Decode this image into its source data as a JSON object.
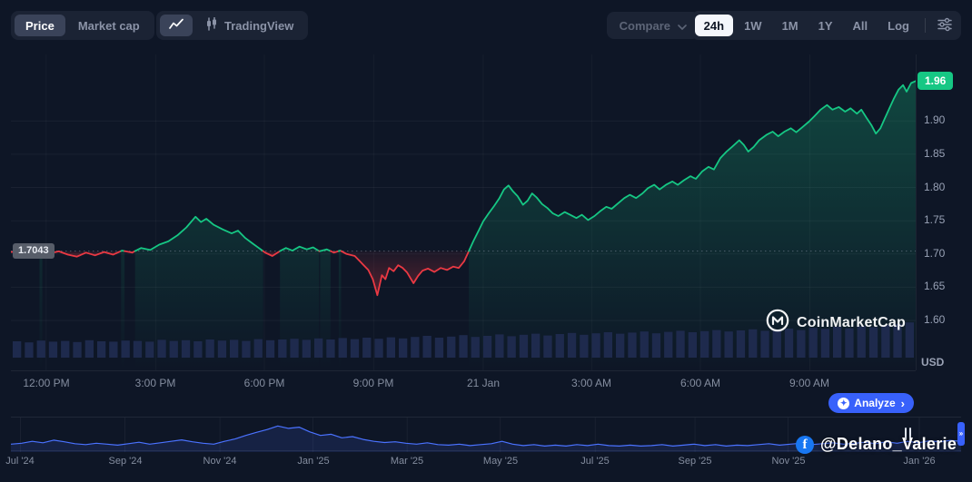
{
  "toolbar": {
    "price_label": "Price",
    "market_cap_label": "Market cap",
    "tradingview_label": "TradingView",
    "compare_label": "Compare",
    "ranges": [
      "24h",
      "1W",
      "1M",
      "1Y",
      "All",
      "Log"
    ],
    "active_range": "24h"
  },
  "icons": {
    "chevron_right": "›",
    "analyze_spark": "✦",
    "facebook_f": "f"
  },
  "analyze_button": {
    "label": "Analyze"
  },
  "watermarks": {
    "cmc": "CoinMarketCap",
    "photo": "@Delano_Valerie"
  },
  "chart_data": {
    "type": "line",
    "title": "24h price chart",
    "currency": "USD",
    "current_price": "1.96",
    "previous_close_label": "1.7043",
    "baseline_value": 1.7043,
    "ylim": [
      1.525,
      2.0
    ],
    "grid": true,
    "legend": "none",
    "y_ticks": [
      "1.90",
      "1.85",
      "1.80",
      "1.75",
      "1.70",
      "1.65",
      "1.60"
    ],
    "x_ticks": [
      {
        "label": "12:00 PM",
        "pos": 0.039
      },
      {
        "label": "3:00 PM",
        "pos": 0.16
      },
      {
        "label": "6:00 PM",
        "pos": 0.28
      },
      {
        "label": "9:00 PM",
        "pos": 0.401
      },
      {
        "label": "21 Jan",
        "pos": 0.522
      },
      {
        "label": "3:00 AM",
        "pos": 0.642
      },
      {
        "label": "6:00 AM",
        "pos": 0.762
      },
      {
        "label": "9:00 AM",
        "pos": 0.883
      }
    ],
    "colors": {
      "up": "#16C784",
      "down": "#EA3943",
      "volume": "#1E2A4D",
      "navigator": "#4A72FF",
      "accent": "#3861FB"
    },
    "series_points": [
      [
        0.0,
        1.703
      ],
      [
        0.013,
        1.704
      ],
      [
        0.023,
        1.7
      ],
      [
        0.033,
        1.705
      ],
      [
        0.043,
        1.701
      ],
      [
        0.053,
        1.704
      ],
      [
        0.063,
        1.699
      ],
      [
        0.073,
        1.696
      ],
      [
        0.083,
        1.702
      ],
      [
        0.093,
        1.698
      ],
      [
        0.103,
        1.703
      ],
      [
        0.113,
        1.699
      ],
      [
        0.123,
        1.705
      ],
      [
        0.134,
        1.702
      ],
      [
        0.144,
        1.709
      ],
      [
        0.154,
        1.706
      ],
      [
        0.164,
        1.714
      ],
      [
        0.174,
        1.719
      ],
      [
        0.184,
        1.728
      ],
      [
        0.194,
        1.74
      ],
      [
        0.204,
        1.756
      ],
      [
        0.21,
        1.748
      ],
      [
        0.216,
        1.753
      ],
      [
        0.224,
        1.744
      ],
      [
        0.234,
        1.737
      ],
      [
        0.244,
        1.731
      ],
      [
        0.251,
        1.735
      ],
      [
        0.259,
        1.724
      ],
      [
        0.267,
        1.716
      ],
      [
        0.274,
        1.709
      ],
      [
        0.281,
        1.702
      ],
      [
        0.289,
        1.697
      ],
      [
        0.297,
        1.704
      ],
      [
        0.304,
        1.709
      ],
      [
        0.311,
        1.705
      ],
      [
        0.319,
        1.711
      ],
      [
        0.327,
        1.707
      ],
      [
        0.334,
        1.71
      ],
      [
        0.341,
        1.704
      ],
      [
        0.349,
        1.707
      ],
      [
        0.357,
        1.702
      ],
      [
        0.364,
        1.705
      ],
      [
        0.371,
        1.7
      ],
      [
        0.38,
        1.697
      ],
      [
        0.385,
        1.69
      ],
      [
        0.39,
        1.683
      ],
      [
        0.395,
        1.676
      ],
      [
        0.4,
        1.662
      ],
      [
        0.405,
        1.638
      ],
      [
        0.41,
        1.668
      ],
      [
        0.414,
        1.662
      ],
      [
        0.418,
        1.679
      ],
      [
        0.423,
        1.674
      ],
      [
        0.428,
        1.683
      ],
      [
        0.433,
        1.679
      ],
      [
        0.438,
        1.672
      ],
      [
        0.445,
        1.656
      ],
      [
        0.45,
        1.667
      ],
      [
        0.455,
        1.675
      ],
      [
        0.461,
        1.678
      ],
      [
        0.468,
        1.673
      ],
      [
        0.475,
        1.679
      ],
      [
        0.482,
        1.676
      ],
      [
        0.489,
        1.681
      ],
      [
        0.495,
        1.679
      ],
      [
        0.501,
        1.689
      ],
      [
        0.506,
        1.704
      ],
      [
        0.511,
        1.719
      ],
      [
        0.517,
        1.735
      ],
      [
        0.522,
        1.749
      ],
      [
        0.528,
        1.761
      ],
      [
        0.534,
        1.772
      ],
      [
        0.54,
        1.784
      ],
      [
        0.545,
        1.797
      ],
      [
        0.55,
        1.803
      ],
      [
        0.555,
        1.794
      ],
      [
        0.56,
        1.787
      ],
      [
        0.566,
        1.774
      ],
      [
        0.571,
        1.78
      ],
      [
        0.576,
        1.791
      ],
      [
        0.581,
        1.785
      ],
      [
        0.587,
        1.775
      ],
      [
        0.593,
        1.769
      ],
      [
        0.599,
        1.761
      ],
      [
        0.605,
        1.757
      ],
      [
        0.612,
        1.763
      ],
      [
        0.618,
        1.759
      ],
      [
        0.625,
        1.754
      ],
      [
        0.631,
        1.759
      ],
      [
        0.638,
        1.751
      ],
      [
        0.645,
        1.757
      ],
      [
        0.651,
        1.764
      ],
      [
        0.658,
        1.771
      ],
      [
        0.664,
        1.768
      ],
      [
        0.671,
        1.776
      ],
      [
        0.678,
        1.784
      ],
      [
        0.684,
        1.789
      ],
      [
        0.691,
        1.784
      ],
      [
        0.698,
        1.791
      ],
      [
        0.704,
        1.799
      ],
      [
        0.711,
        1.804
      ],
      [
        0.717,
        1.797
      ],
      [
        0.724,
        1.804
      ],
      [
        0.731,
        1.809
      ],
      [
        0.737,
        1.804
      ],
      [
        0.744,
        1.811
      ],
      [
        0.751,
        1.817
      ],
      [
        0.757,
        1.813
      ],
      [
        0.764,
        1.824
      ],
      [
        0.771,
        1.831
      ],
      [
        0.777,
        1.827
      ],
      [
        0.784,
        1.844
      ],
      [
        0.791,
        1.854
      ],
      [
        0.797,
        1.861
      ],
      [
        0.805,
        1.871
      ],
      [
        0.81,
        1.864
      ],
      [
        0.815,
        1.854
      ],
      [
        0.821,
        1.861
      ],
      [
        0.827,
        1.871
      ],
      [
        0.835,
        1.879
      ],
      [
        0.842,
        1.884
      ],
      [
        0.848,
        1.877
      ],
      [
        0.855,
        1.884
      ],
      [
        0.862,
        1.889
      ],
      [
        0.868,
        1.883
      ],
      [
        0.875,
        1.891
      ],
      [
        0.882,
        1.899
      ],
      [
        0.888,
        1.907
      ],
      [
        0.895,
        1.917
      ],
      [
        0.902,
        1.924
      ],
      [
        0.908,
        1.917
      ],
      [
        0.915,
        1.921
      ],
      [
        0.922,
        1.914
      ],
      [
        0.928,
        1.919
      ],
      [
        0.935,
        1.911
      ],
      [
        0.94,
        1.917
      ],
      [
        0.946,
        1.904
      ],
      [
        0.951,
        1.894
      ],
      [
        0.956,
        1.881
      ],
      [
        0.961,
        1.889
      ],
      [
        0.966,
        1.904
      ],
      [
        0.971,
        1.919
      ],
      [
        0.976,
        1.934
      ],
      [
        0.981,
        1.947
      ],
      [
        0.986,
        1.954
      ],
      [
        0.99,
        1.944
      ],
      [
        0.995,
        1.957
      ],
      [
        1.0,
        1.96
      ]
    ],
    "volume": [
      0.45,
      0.42,
      0.47,
      0.44,
      0.46,
      0.43,
      0.48,
      0.45,
      0.44,
      0.47,
      0.46,
      0.44,
      0.49,
      0.46,
      0.48,
      0.45,
      0.5,
      0.47,
      0.49,
      0.46,
      0.51,
      0.48,
      0.5,
      0.52,
      0.49,
      0.53,
      0.5,
      0.54,
      0.51,
      0.55,
      0.52,
      0.56,
      0.53,
      0.57,
      0.6,
      0.55,
      0.58,
      0.62,
      0.57,
      0.6,
      0.64,
      0.59,
      0.63,
      0.66,
      0.61,
      0.65,
      0.68,
      0.63,
      0.67,
      0.7,
      0.66,
      0.69,
      0.72,
      0.67,
      0.71,
      0.74,
      0.7,
      0.73,
      0.76,
      0.72,
      0.75,
      0.78,
      0.74,
      0.77,
      0.8,
      0.76,
      0.82,
      0.79,
      0.85,
      0.81,
      0.87,
      0.84,
      0.9,
      0.93,
      0.97
    ],
    "navigator": {
      "values": [
        0.18,
        0.22,
        0.3,
        0.24,
        0.35,
        0.28,
        0.2,
        0.16,
        0.22,
        0.18,
        0.14,
        0.2,
        0.26,
        0.18,
        0.24,
        0.3,
        0.36,
        0.28,
        0.22,
        0.18,
        0.3,
        0.4,
        0.55,
        0.68,
        0.8,
        0.95,
        0.85,
        0.9,
        0.7,
        0.55,
        0.6,
        0.45,
        0.5,
        0.38,
        0.3,
        0.25,
        0.28,
        0.22,
        0.18,
        0.24,
        0.16,
        0.14,
        0.18,
        0.12,
        0.16,
        0.2,
        0.3,
        0.18,
        0.12,
        0.16,
        0.1,
        0.14,
        0.1,
        0.16,
        0.12,
        0.18,
        0.12,
        0.1,
        0.14,
        0.1,
        0.12,
        0.16,
        0.1,
        0.14,
        0.18,
        0.12,
        0.16,
        0.1,
        0.14,
        0.12,
        0.16,
        0.2,
        0.14,
        0.18,
        0.22,
        0.16,
        0.2,
        0.24,
        0.18,
        0.22,
        0.26,
        0.2,
        0.28,
        0.22,
        0.3,
        0.24,
        0.32,
        0.28,
        0.34,
        0.3
      ],
      "labels": [
        {
          "label": "Jul '24",
          "pos": 0.01
        },
        {
          "label": "Sep '24",
          "pos": 0.12
        },
        {
          "label": "Nov '24",
          "pos": 0.22
        },
        {
          "label": "Jan '25",
          "pos": 0.318
        },
        {
          "label": "Mar '25",
          "pos": 0.417
        },
        {
          "label": "May '25",
          "pos": 0.515
        },
        {
          "label": "Jul '25",
          "pos": 0.615
        },
        {
          "label": "Sep '25",
          "pos": 0.72
        },
        {
          "label": "Nov '25",
          "pos": 0.818
        },
        {
          "label": "Jan '26",
          "pos": 0.956
        }
      ]
    }
  }
}
